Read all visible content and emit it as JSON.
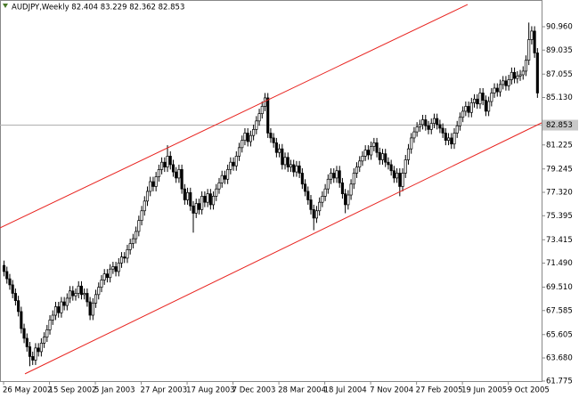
{
  "chart_data": {
    "type": "candlestick",
    "title": "AUDJPY,Weekly  82.404 83.229 82.362 82.853",
    "open": [
      71.3,
      70.8,
      70.2,
      69.7,
      69.0,
      68.4,
      67.5,
      66.1,
      65.3,
      64.6,
      63.8,
      63.5,
      64.5,
      64.2,
      64.9,
      65.4,
      66.0,
      66.8,
      67.2,
      67.9,
      67.4,
      68.3,
      68.0,
      68.6,
      69.2,
      68.8,
      69.0,
      69.6,
      68.9,
      69.0,
      68.3,
      67.2,
      68.2,
      68.9,
      69.5,
      70.1,
      70.6,
      70.3,
      71.0,
      71.2,
      70.8,
      71.5,
      72.0,
      71.9,
      72.6,
      73.1,
      73.5,
      74.1,
      75.0,
      75.8,
      76.6,
      77.4,
      78.2,
      77.8,
      78.6,
      79.2,
      79.8,
      79.4,
      80.3,
      79.6,
      79.0,
      78.5,
      79.2,
      77.6,
      76.7,
      77.3,
      76.2,
      75.6,
      76.4,
      75.9,
      77.0,
      76.5,
      77.2,
      76.3,
      77.0,
      77.6,
      78.1,
      78.7,
      78.4,
      79.2,
      79.8,
      79.5,
      80.3,
      81.0,
      81.6,
      82.2,
      81.5,
      82.0,
      82.5,
      83.2,
      83.8,
      84.4,
      85.1,
      82.2,
      81.8,
      81.4,
      80.6,
      80.9,
      79.6,
      80.2,
      79.4,
      79.6,
      79.0,
      79.5,
      78.9,
      78.0,
      77.4,
      76.7,
      75.9,
      75.2,
      75.8,
      76.5,
      77.0,
      77.6,
      78.4,
      78.9,
      78.5,
      79.1,
      78.1,
      77.2,
      76.3,
      77.1,
      78.0,
      78.9,
      79.4,
      79.9,
      80.3,
      80.8,
      80.4,
      81.1,
      81.4,
      80.6,
      80.0,
      80.5,
      79.8,
      79.6,
      79.1,
      78.5,
      78.9,
      77.8,
      78.9,
      80.0,
      80.9,
      81.8,
      82.3,
      82.7,
      82.9,
      83.3,
      82.8,
      82.5,
      83.0,
      83.4,
      82.9,
      82.6,
      82.2,
      81.6,
      81.8,
      81.3,
      82.2,
      82.8,
      83.5,
      84.0,
      84.4,
      83.9,
      84.7,
      85.0,
      84.6,
      85.5,
      84.9,
      84.0,
      84.8,
      85.5,
      85.9,
      85.6,
      86.2,
      86.5,
      86.1,
      86.6,
      87.2,
      86.7,
      86.9,
      87.0,
      87.3,
      88.2,
      89.9,
      90.6,
      88.8
    ],
    "high": [
      71.7,
      71.2,
      70.6,
      70.1,
      69.4,
      68.8,
      67.9,
      66.5,
      65.7,
      65.0,
      64.2,
      64.9,
      64.9,
      65.3,
      65.8,
      66.4,
      67.2,
      67.6,
      68.3,
      68.3,
      68.7,
      68.7,
      69.0,
      69.6,
      69.6,
      69.4,
      70.0,
      70.0,
      69.4,
      69.4,
      68.7,
      68.6,
      69.3,
      69.9,
      70.5,
      71.0,
      71.0,
      71.4,
      71.6,
      71.6,
      71.9,
      72.4,
      72.4,
      73.0,
      73.5,
      73.9,
      74.5,
      75.4,
      76.2,
      77.0,
      77.8,
      78.6,
      78.6,
      79.0,
      79.6,
      80.2,
      80.2,
      81.2,
      80.7,
      80.0,
      79.4,
      79.6,
      79.6,
      78.0,
      77.7,
      77.7,
      76.6,
      76.8,
      76.8,
      77.4,
      77.4,
      77.6,
      77.6,
      77.4,
      78.0,
      78.5,
      79.1,
      79.1,
      79.6,
      80.2,
      80.2,
      80.7,
      81.4,
      82.0,
      82.6,
      82.6,
      82.4,
      82.9,
      83.6,
      84.2,
      84.8,
      85.5,
      85.5,
      82.6,
      82.2,
      81.8,
      81.3,
      81.3,
      80.6,
      80.6,
      80.0,
      80.0,
      79.9,
      79.9,
      79.3,
      78.4,
      77.8,
      77.1,
      76.3,
      76.2,
      76.9,
      77.4,
      78.0,
      78.8,
      79.3,
      79.3,
      79.5,
      79.5,
      78.5,
      77.6,
      77.5,
      78.4,
      79.3,
      79.8,
      80.3,
      80.7,
      81.2,
      81.2,
      81.5,
      81.8,
      81.8,
      81.0,
      80.9,
      80.9,
      80.2,
      80.0,
      79.5,
      79.3,
      79.3,
      79.3,
      80.4,
      81.3,
      82.2,
      82.7,
      83.1,
      83.3,
      83.7,
      83.7,
      83.2,
      83.4,
      83.8,
      83.8,
      83.3,
      83.0,
      82.6,
      82.2,
      82.2,
      82.6,
      83.2,
      83.9,
      84.4,
      84.8,
      84.8,
      85.1,
      85.4,
      85.4,
      85.9,
      85.9,
      85.3,
      85.2,
      85.9,
      86.3,
      86.3,
      86.6,
      86.9,
      86.9,
      87.0,
      87.6,
      87.6,
      87.3,
      87.4,
      87.7,
      88.6,
      91.3,
      91.0,
      91.0,
      89.2
    ],
    "low": [
      70.4,
      69.8,
      69.3,
      68.6,
      68.0,
      67.1,
      65.7,
      64.9,
      64.2,
      63.0,
      63.1,
      63.1,
      63.8,
      63.8,
      64.5,
      65.0,
      65.6,
      66.4,
      66.8,
      67.0,
      67.0,
      67.6,
      67.6,
      68.2,
      68.4,
      68.4,
      68.6,
      68.5,
      68.5,
      67.9,
      66.8,
      66.8,
      67.8,
      68.5,
      69.1,
      69.7,
      69.9,
      69.9,
      70.6,
      70.4,
      70.4,
      71.1,
      71.5,
      71.5,
      72.2,
      72.7,
      73.1,
      73.7,
      74.6,
      75.4,
      76.2,
      77.0,
      77.4,
      77.4,
      78.2,
      78.8,
      79.0,
      79.0,
      79.2,
      78.6,
      78.1,
      78.1,
      77.2,
      76.3,
      76.3,
      75.8,
      74.0,
      75.2,
      75.5,
      75.5,
      76.1,
      76.1,
      75.9,
      75.9,
      76.6,
      77.2,
      77.7,
      78.0,
      78.0,
      78.8,
      79.1,
      79.1,
      79.9,
      80.6,
      81.2,
      81.1,
      81.1,
      81.6,
      82.1,
      82.8,
      83.4,
      84.0,
      81.8,
      81.4,
      81.0,
      80.2,
      80.2,
      79.2,
      79.2,
      79.0,
      79.0,
      78.6,
      78.6,
      78.5,
      77.6,
      77.0,
      76.3,
      75.5,
      74.2,
      74.8,
      75.4,
      76.1,
      76.6,
      77.2,
      78.0,
      78.1,
      78.1,
      77.7,
      76.8,
      75.6,
      75.9,
      76.7,
      77.6,
      78.5,
      79.0,
      79.5,
      79.9,
      80.0,
      80.0,
      80.7,
      80.2,
      79.6,
      79.6,
      79.4,
      79.2,
      78.7,
      78.1,
      78.1,
      77.0,
      77.4,
      78.5,
      79.6,
      80.5,
      81.4,
      81.9,
      82.3,
      82.5,
      82.4,
      82.1,
      82.1,
      82.6,
      82.5,
      82.2,
      81.8,
      81.2,
      81.2,
      80.9,
      80.9,
      81.8,
      82.4,
      83.1,
      83.6,
      83.5,
      83.5,
      84.3,
      84.2,
      84.2,
      84.5,
      83.6,
      83.6,
      84.4,
      85.1,
      85.2,
      85.2,
      85.8,
      85.7,
      85.7,
      86.2,
      86.3,
      86.3,
      86.5,
      86.6,
      86.9,
      87.8,
      89.5,
      88.4,
      85.1
    ],
    "close": [
      70.8,
      70.2,
      69.7,
      69.0,
      68.4,
      67.5,
      66.1,
      65.3,
      64.6,
      63.8,
      63.5,
      64.5,
      64.2,
      64.9,
      65.4,
      66.0,
      66.8,
      67.2,
      67.9,
      67.4,
      68.3,
      68.0,
      68.6,
      69.2,
      68.8,
      69.0,
      69.6,
      68.9,
      69.0,
      68.3,
      67.2,
      68.2,
      68.9,
      69.5,
      70.1,
      70.6,
      70.3,
      71.0,
      71.2,
      70.8,
      71.5,
      72.0,
      71.9,
      72.6,
      73.1,
      73.5,
      74.1,
      75.0,
      75.8,
      76.6,
      77.4,
      78.2,
      77.8,
      78.6,
      79.2,
      79.8,
      79.4,
      80.3,
      79.6,
      79.0,
      78.5,
      79.2,
      77.6,
      76.7,
      77.3,
      76.2,
      75.6,
      76.4,
      75.9,
      77.0,
      76.5,
      77.2,
      76.3,
      77.0,
      77.6,
      78.1,
      78.7,
      78.4,
      79.2,
      79.8,
      79.5,
      80.3,
      81.0,
      81.6,
      82.2,
      81.5,
      82.0,
      82.5,
      83.2,
      83.8,
      84.4,
      85.1,
      82.2,
      81.8,
      81.4,
      80.6,
      80.9,
      79.6,
      80.2,
      79.4,
      79.6,
      79.0,
      79.5,
      78.9,
      78.0,
      77.4,
      76.7,
      75.9,
      75.2,
      75.8,
      76.5,
      77.0,
      77.6,
      78.4,
      78.9,
      78.5,
      79.1,
      78.1,
      77.2,
      76.3,
      77.1,
      78.0,
      78.9,
      79.4,
      79.9,
      80.3,
      80.8,
      80.4,
      81.1,
      81.4,
      80.6,
      80.0,
      80.5,
      79.8,
      79.6,
      79.1,
      78.5,
      78.9,
      77.8,
      78.9,
      80.0,
      80.9,
      81.8,
      82.3,
      82.7,
      82.9,
      83.3,
      82.8,
      82.5,
      83.0,
      83.4,
      82.9,
      82.6,
      82.2,
      81.6,
      81.8,
      81.3,
      82.2,
      82.8,
      83.5,
      84.0,
      84.4,
      83.9,
      84.7,
      85.0,
      84.6,
      85.5,
      84.9,
      84.0,
      84.8,
      85.5,
      85.9,
      85.6,
      86.2,
      86.5,
      86.1,
      86.6,
      87.2,
      86.7,
      86.9,
      87.0,
      87.3,
      88.2,
      89.9,
      90.6,
      88.8,
      85.5
    ],
    "xlim": [
      -1.25,
      187.6
    ],
    "xticks": [
      {
        "value": 0,
        "label": "26 May 2002"
      },
      {
        "value": 16,
        "label": "15 Sep 2002"
      },
      {
        "value": 32,
        "label": "5 Jan 2003"
      },
      {
        "value": 48,
        "label": "27 Apr 2003"
      },
      {
        "value": 64,
        "label": "17 Aug 2003"
      },
      {
        "value": 80,
        "label": "7 Dec 2003"
      },
      {
        "value": 96,
        "label": "28 Mar 2004"
      },
      {
        "value": 112,
        "label": "18 Jul 2004"
      },
      {
        "value": 128,
        "label": "7 Nov 2004"
      },
      {
        "value": 144,
        "label": "27 Feb 2005"
      },
      {
        "value": 160,
        "label": "19 Jun 2005"
      },
      {
        "value": 176,
        "label": "9 Oct 2005"
      }
    ],
    "ylim": [
      61.775,
      93.16
    ],
    "yticks": [
      {
        "value": 90.96,
        "label": "90.960"
      },
      {
        "value": 89.035,
        "label": "89.035"
      },
      {
        "value": 87.055,
        "label": "87.055"
      },
      {
        "value": 85.13,
        "label": "85.130"
      },
      {
        "value": 81.225,
        "label": "81.225"
      },
      {
        "value": 79.245,
        "label": "79.245"
      },
      {
        "value": 77.32,
        "label": "77.320"
      },
      {
        "value": 75.395,
        "label": "75.395"
      },
      {
        "value": 73.415,
        "label": "73.415"
      },
      {
        "value": 71.49,
        "label": "71.490"
      },
      {
        "value": 69.51,
        "label": "69.510"
      },
      {
        "value": 67.585,
        "label": "67.585"
      },
      {
        "value": 65.605,
        "label": "65.605"
      },
      {
        "value": 63.68,
        "label": "63.680"
      },
      {
        "value": 61.775,
        "label": "61.775"
      }
    ],
    "current_price": {
      "value": 82.853,
      "label": "82.853"
    },
    "trendlines": [
      {
        "color": "#e8231f",
        "x": [
          -1.25,
          161.8
        ],
        "y": [
          74.39,
          92.79
        ]
      },
      {
        "color": "#e8231f",
        "x": [
          7.45,
          187.6
        ],
        "y": [
          62.37,
          83.04
        ]
      }
    ]
  }
}
